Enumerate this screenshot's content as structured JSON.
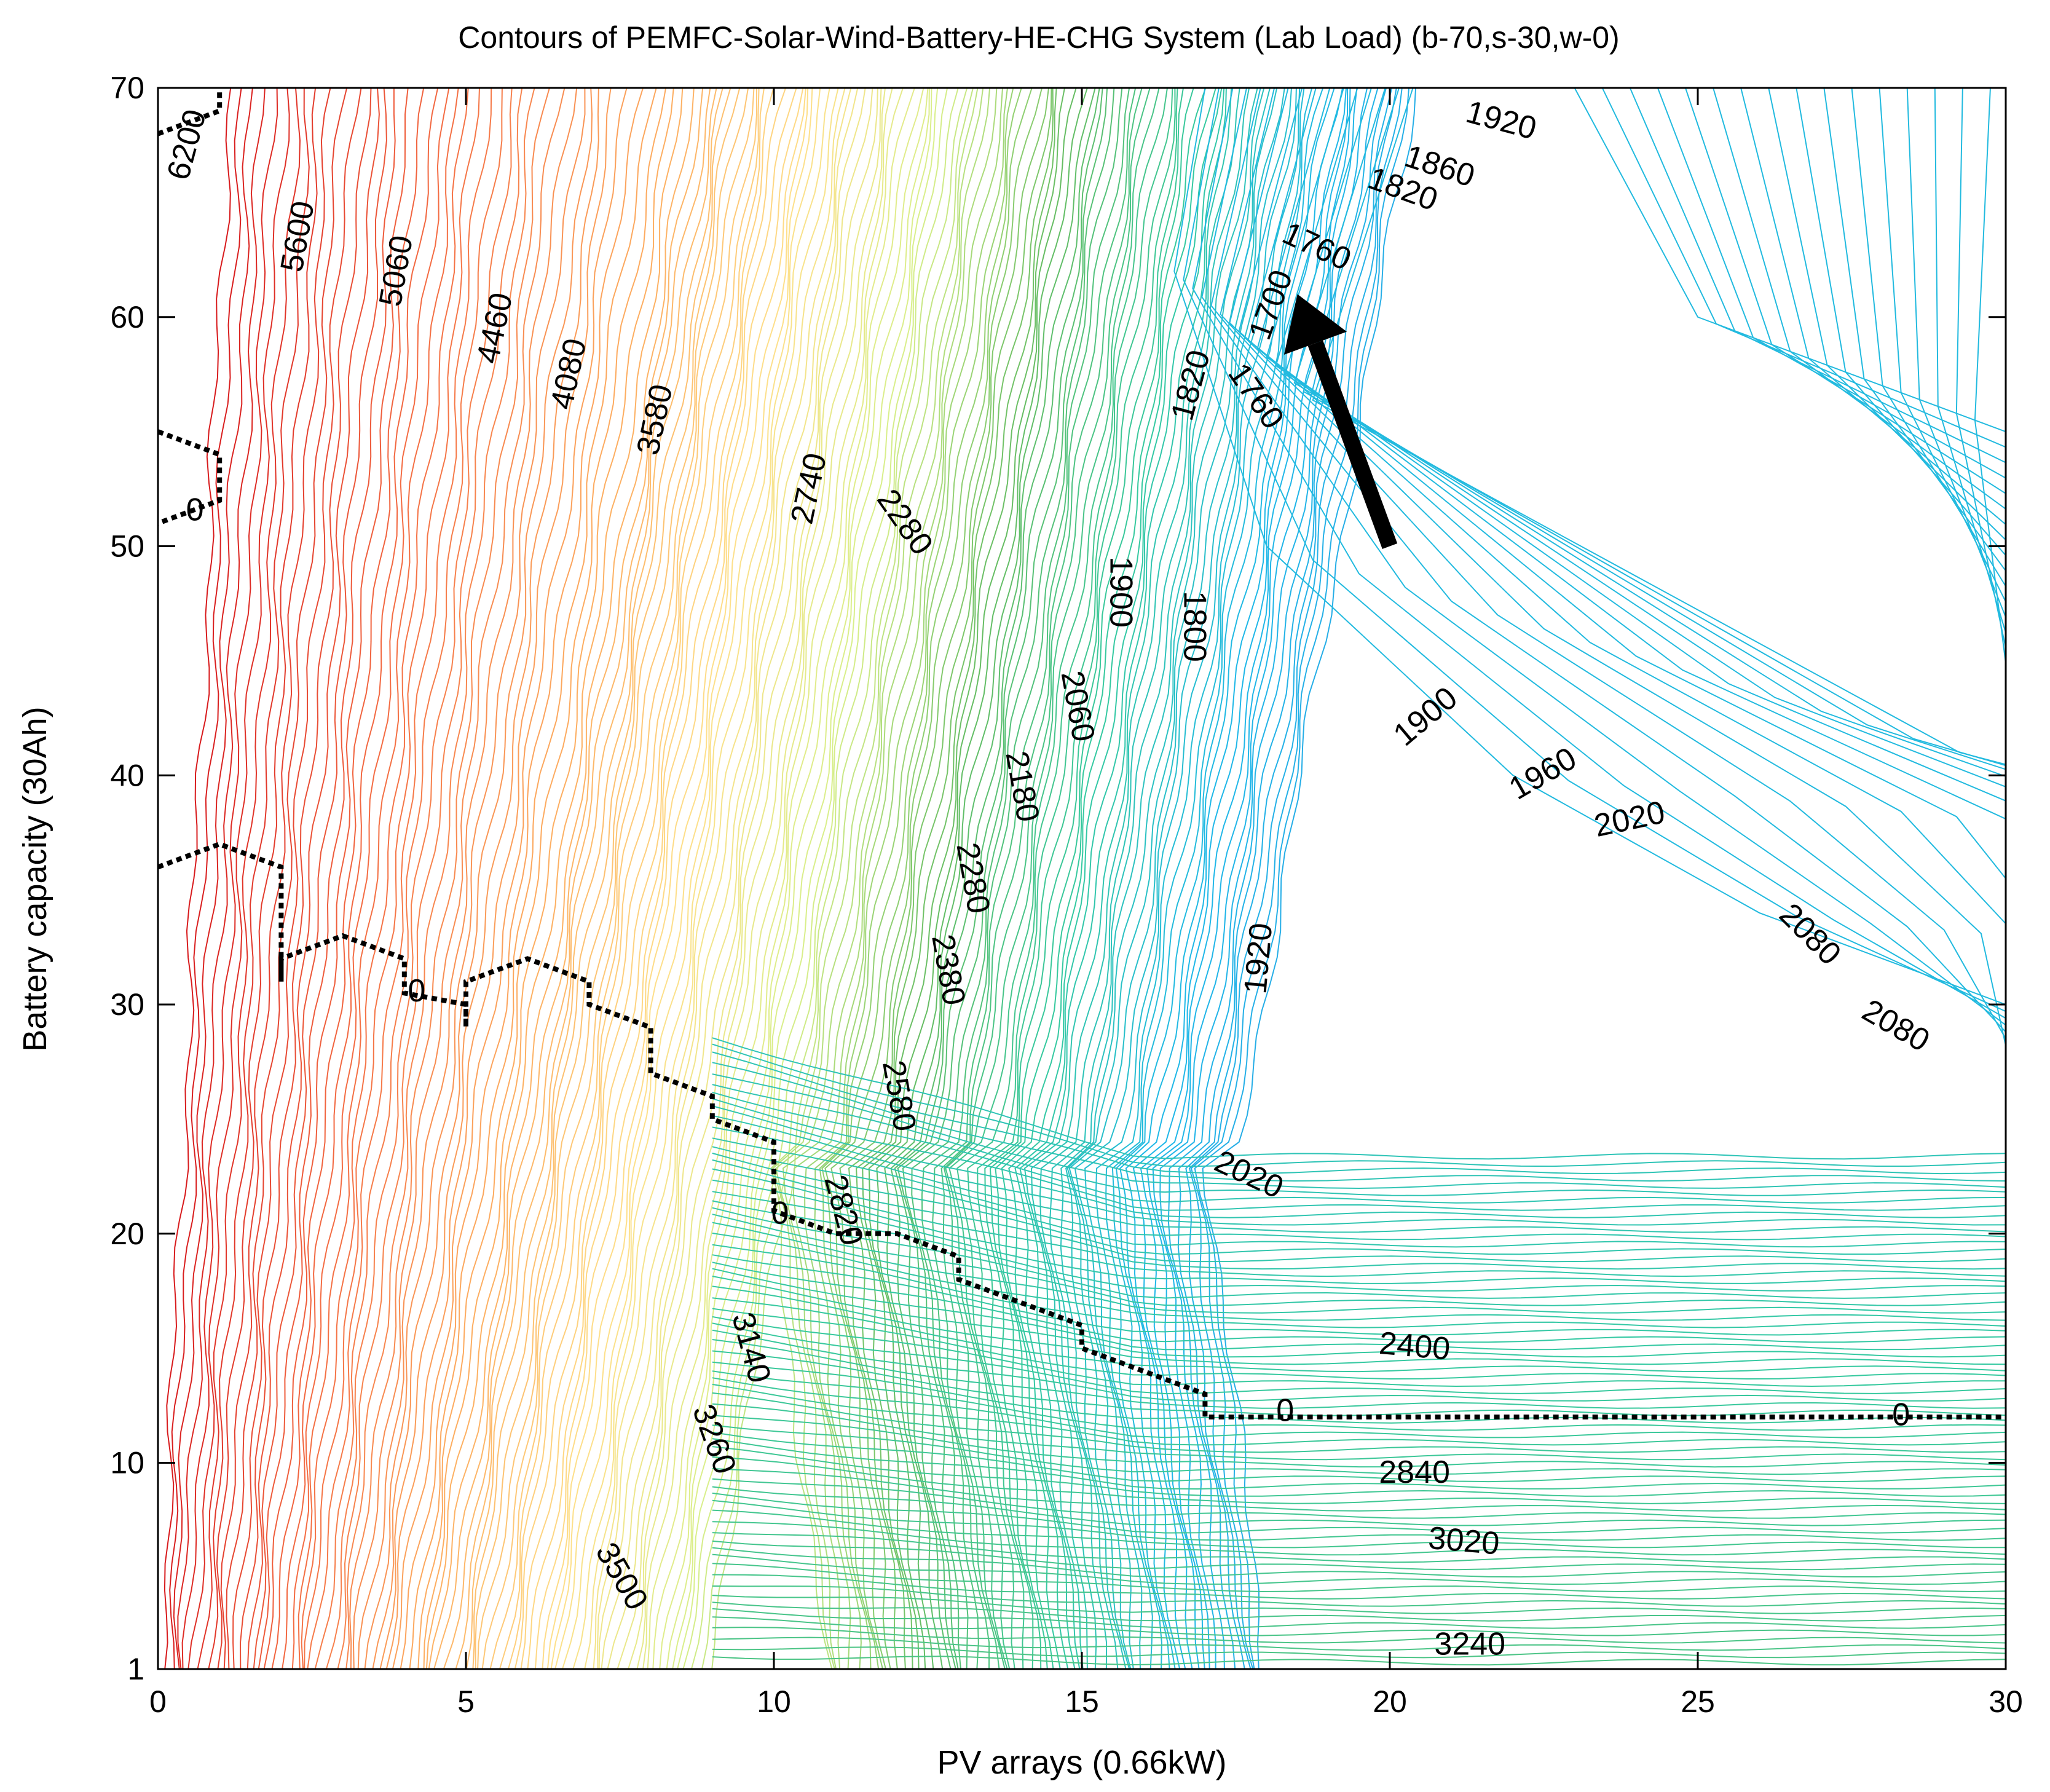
{
  "chart_data": {
    "type": "contour",
    "title": "Contours of PEMFC-Solar-Wind-Battery-HE-CHG System (Lab Load) (b-70,s-30,w-0)",
    "xlabel": "PV arrays (0.66kW)",
    "ylabel": "Battery capacity (30Ah)",
    "xlim": [
      0,
      30
    ],
    "ylim": [
      1,
      70
    ],
    "xticks": [
      0,
      5,
      10,
      15,
      20,
      25,
      30
    ],
    "yticks": [
      1,
      10,
      20,
      30,
      40,
      50,
      60,
      70
    ],
    "colormap": [
      "#d7191c",
      "#f46d43",
      "#fdae61",
      "#fee08b",
      "#d9ef8b",
      "#66bd63",
      "#35c9a0",
      "#1fb8e8",
      "#2aa7e6"
    ],
    "contour_labels": [
      {
        "text": "6200",
        "x": 0.5,
        "y": 67.5,
        "angle": -75
      },
      {
        "text": "5600",
        "x": 2.3,
        "y": 63.5,
        "angle": -80
      },
      {
        "text": "5060",
        "x": 3.9,
        "y": 62,
        "angle": -80
      },
      {
        "text": "4460",
        "x": 5.5,
        "y": 59.5,
        "angle": -78
      },
      {
        "text": "4080",
        "x": 6.7,
        "y": 57.5,
        "angle": -78
      },
      {
        "text": "3580",
        "x": 8.1,
        "y": 55.5,
        "angle": -78
      },
      {
        "text": "2740",
        "x": 10.6,
        "y": 52.5,
        "angle": -78
      },
      {
        "text": "2280",
        "x": 12.1,
        "y": 51,
        "angle": 55
      },
      {
        "text": "1900",
        "x": 15.6,
        "y": 48,
        "angle": 90
      },
      {
        "text": "1800",
        "x": 16.8,
        "y": 46.5,
        "angle": 90
      },
      {
        "text": "1820",
        "x": 16.8,
        "y": 57,
        "angle": -75
      },
      {
        "text": "1760",
        "x": 17.8,
        "y": 56.5,
        "angle": 55
      },
      {
        "text": "1700",
        "x": 18.1,
        "y": 60.5,
        "angle": -70
      },
      {
        "text": "1760",
        "x": 18.8,
        "y": 63,
        "angle": 25
      },
      {
        "text": "1820",
        "x": 20.2,
        "y": 65.5,
        "angle": 20
      },
      {
        "text": "1860",
        "x": 20.8,
        "y": 66.5,
        "angle": 18
      },
      {
        "text": "1920",
        "x": 21.8,
        "y": 68.5,
        "angle": 15
      },
      {
        "text": "2060",
        "x": 14.9,
        "y": 43,
        "angle": 80
      },
      {
        "text": "2180",
        "x": 14.0,
        "y": 39.5,
        "angle": 80
      },
      {
        "text": "2280",
        "x": 13.2,
        "y": 35.5,
        "angle": 80
      },
      {
        "text": "2380",
        "x": 12.8,
        "y": 31.5,
        "angle": 80
      },
      {
        "text": "2580",
        "x": 12.0,
        "y": 26,
        "angle": 80
      },
      {
        "text": "2820",
        "x": 11.1,
        "y": 21,
        "angle": 75
      },
      {
        "text": "3140",
        "x": 9.6,
        "y": 15,
        "angle": 75
      },
      {
        "text": "3260",
        "x": 9.0,
        "y": 11,
        "angle": 70
      },
      {
        "text": "3500",
        "x": 7.5,
        "y": 5,
        "angle": 60
      },
      {
        "text": "1900",
        "x": 20.6,
        "y": 42.5,
        "angle": -40
      },
      {
        "text": "1960",
        "x": 22.5,
        "y": 40,
        "angle": -30
      },
      {
        "text": "2020",
        "x": 23.9,
        "y": 38,
        "angle": -12
      },
      {
        "text": "2080",
        "x": 26.8,
        "y": 33,
        "angle": 45
      },
      {
        "text": "2080",
        "x": 28.2,
        "y": 29,
        "angle": 30
      },
      {
        "text": "1920",
        "x": 17.9,
        "y": 32,
        "angle": -85
      },
      {
        "text": "2020",
        "x": 17.7,
        "y": 22.5,
        "angle": 25
      },
      {
        "text": "2400",
        "x": 20.4,
        "y": 15,
        "angle": 5
      },
      {
        "text": "2840",
        "x": 20.4,
        "y": 9.5,
        "angle": 0
      },
      {
        "text": "3020",
        "x": 21.2,
        "y": 6.5,
        "angle": 5
      },
      {
        "text": "3240",
        "x": 21.3,
        "y": 2,
        "angle": 0
      }
    ],
    "zero_contour": {
      "level": "0",
      "main_path": [
        [
          0,
          36
        ],
        [
          1,
          37
        ],
        [
          2,
          36
        ],
        [
          2,
          31
        ],
        [
          2,
          32
        ],
        [
          3,
          33
        ],
        [
          4,
          32
        ],
        [
          4,
          30.5
        ],
        [
          5,
          30
        ],
        [
          5,
          29
        ],
        [
          5,
          31
        ],
        [
          6,
          32
        ],
        [
          7,
          31
        ],
        [
          7,
          30
        ],
        [
          8,
          29
        ],
        [
          8,
          27
        ],
        [
          9,
          26
        ],
        [
          9,
          25
        ],
        [
          10,
          24
        ],
        [
          10,
          21
        ],
        [
          11,
          20
        ],
        [
          12,
          20
        ],
        [
          13,
          19
        ],
        [
          13,
          18
        ],
        [
          15,
          16
        ],
        [
          15,
          15
        ],
        [
          17,
          13
        ],
        [
          17,
          12
        ],
        [
          30,
          12
        ]
      ],
      "upper_left_path": [
        [
          0,
          55
        ],
        [
          1,
          54
        ],
        [
          1,
          52
        ],
        [
          0,
          51
        ]
      ],
      "corner_path": [
        [
          0,
          68
        ],
        [
          1,
          69
        ],
        [
          1,
          70
        ]
      ],
      "labels": [
        {
          "text": "0",
          "x": 0.6,
          "y": 51.5
        },
        {
          "text": "0",
          "x": 4.2,
          "y": 30.5
        },
        {
          "text": "0",
          "x": 10.1,
          "y": 20.8
        },
        {
          "text": "0",
          "x": 18.3,
          "y": 12.2
        },
        {
          "text": "0",
          "x": 28.3,
          "y": 12
        }
      ]
    },
    "arrow": {
      "from": [
        20,
        50
      ],
      "to": [
        18.5,
        61
      ]
    }
  }
}
